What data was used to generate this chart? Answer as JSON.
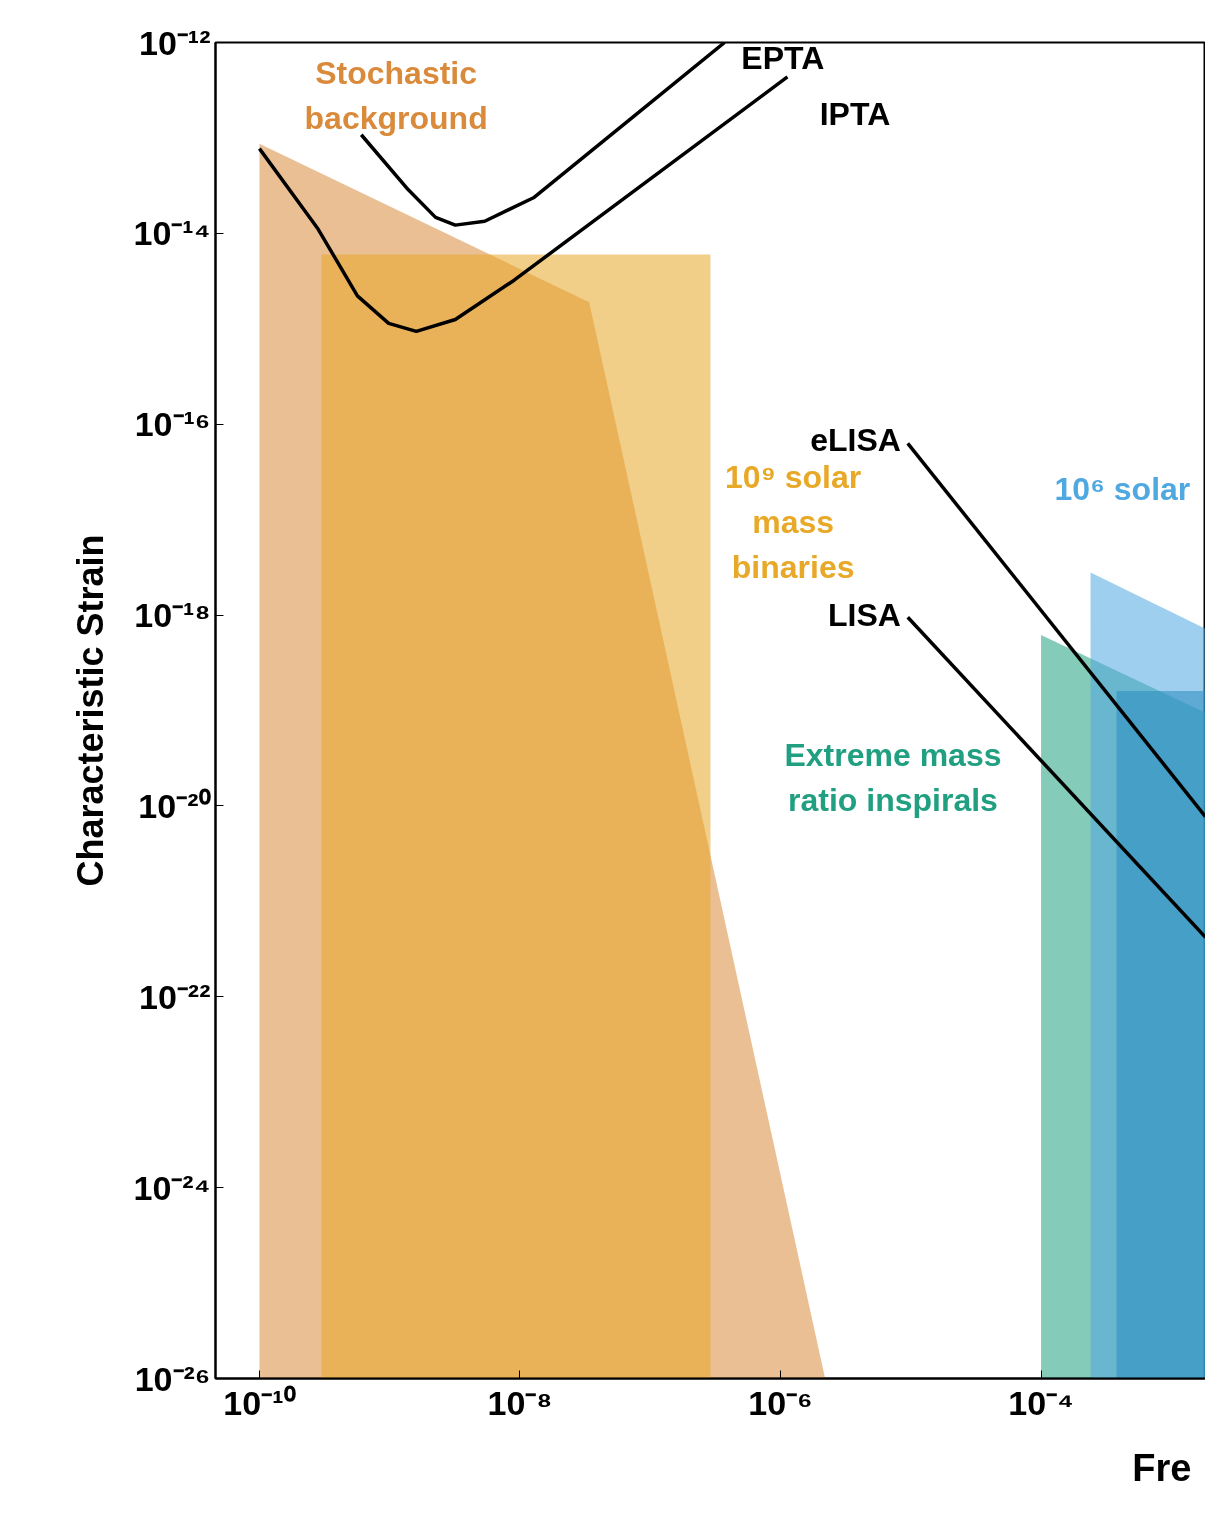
{
  "chart_data": {
    "type": "area",
    "xlabel": "Fre",
    "ylabel": "Characteristic Strain",
    "log": "xy",
    "xlim": [
      4.6e-11,
      0.00183
    ],
    "ylim": [
      1e-26,
      1e-12
    ],
    "xticks": [
      {
        "value": 1e-10,
        "label": "10⁻¹⁰"
      },
      {
        "value": 1e-08,
        "label": "10⁻⁸"
      },
      {
        "value": 1e-06,
        "label": "10⁻⁶"
      },
      {
        "value": 0.0001,
        "label": "10⁻⁴"
      }
    ],
    "yticks": [
      {
        "value": 1e-26,
        "label": "10⁻²⁶"
      },
      {
        "value": 1e-24,
        "label": "10⁻²⁴"
      },
      {
        "value": 1e-22,
        "label": "10⁻²²"
      },
      {
        "value": 1e-20,
        "label": "10⁻²⁰"
      },
      {
        "value": 1e-18,
        "label": "10⁻¹⁸"
      },
      {
        "value": 1e-16,
        "label": "10⁻¹⁶"
      },
      {
        "value": 1e-14,
        "label": "10⁻¹⁴"
      },
      {
        "value": 1e-12,
        "label": "10⁻¹²"
      }
    ],
    "series": [
      {
        "name": "Stochastic background",
        "color": "#d98a3a",
        "x": [
          1e-10,
          3.4e-08,
          2.2e-06
        ],
        "values": [
          8.7e-14,
          1.9e-15,
          1e-26
        ]
      },
      {
        "name": "10⁹ solar mass binaries",
        "color": "#e8a828",
        "x": [
          3e-10,
          2.9e-07
        ],
        "values": [
          6e-15,
          6e-15
        ]
      },
      {
        "name": "Extreme mass ratio inspirals",
        "color": "#20a080",
        "x": [
          0.0001,
          0.00183
        ],
        "values": [
          6.2e-19,
          9.5e-20
        ]
      },
      {
        "name": "10⁶ solar",
        "color": "#50a8e0",
        "x": [
          0.00024,
          0.00183
        ],
        "values": [
          2.8e-18,
          7.2e-19
        ]
      },
      {
        "color": "#2a8cc0",
        "x": [
          0.00038,
          0.00183
        ],
        "values": [
          1.6e-19,
          1.6e-19
        ]
      },
      {
        "name": "EPTA",
        "type": "line",
        "color": "#000000",
        "x": [
          6.05e-10,
          1.39e-09,
          2.25e-09,
          3.19e-09,
          5.36e-09,
          1.27e-08,
          7.19e-08,
          3.72e-07
        ],
        "values": [
          1.08e-13,
          2.86e-14,
          1.47e-14,
          1.22e-14,
          1.34e-14,
          2.36e-14,
          1.61e-13,
          1e-12
        ]
      },
      {
        "name": "IPTA",
        "type": "line",
        "color": "#000000",
        "x": [
          1e-10,
          2.82e-10,
          5.65e-10,
          9.82e-10,
          1.6e-09,
          3.19e-09,
          9.02e-09,
          1.13e-06
        ],
        "values": [
          7.73e-14,
          1.11e-14,
          2.21e-15,
          1.14e-15,
          9.4e-16,
          1.25e-15,
          3.23e-15,
          4.36e-13
        ]
      },
      {
        "name": "eLISA",
        "type": "line",
        "color": "#000000",
        "x": [
          9.48e-06,
          0.00183
        ],
        "values": [
          6.31e-17,
          7.73e-21
        ]
      },
      {
        "name": "LISA",
        "type": "line",
        "color": "#000000",
        "x": [
          9.48e-06,
          0.00183
        ],
        "values": [
          9.5e-19,
          4.19e-22
        ]
      }
    ]
  }
}
